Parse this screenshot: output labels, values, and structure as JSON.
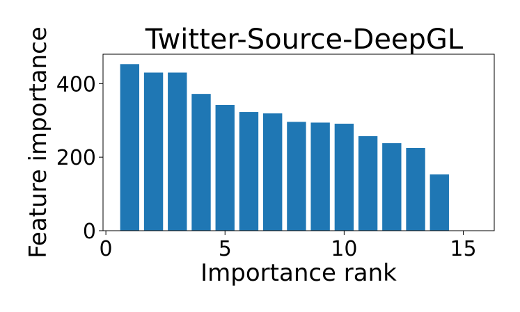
{
  "chart_data": {
    "type": "bar",
    "title": "Twitter-Source-DeepGL",
    "x_label": "Importance rank",
    "y_label": "Feature importance",
    "x": [
      1,
      2,
      3,
      4,
      5,
      6,
      7,
      8,
      9,
      10,
      11,
      12,
      13,
      14
    ],
    "values": [
      453,
      430,
      430,
      372,
      342,
      323,
      319,
      296,
      294,
      291,
      257,
      238,
      225,
      153
    ],
    "color": "#1f77b4",
    "bar_width": 0.8,
    "xlim": [
      -0.12,
      16.3
    ],
    "xticks": [
      0,
      5,
      10,
      15
    ],
    "ylim": [
      0,
      480
    ],
    "yticks": [
      0,
      200,
      400
    ]
  }
}
